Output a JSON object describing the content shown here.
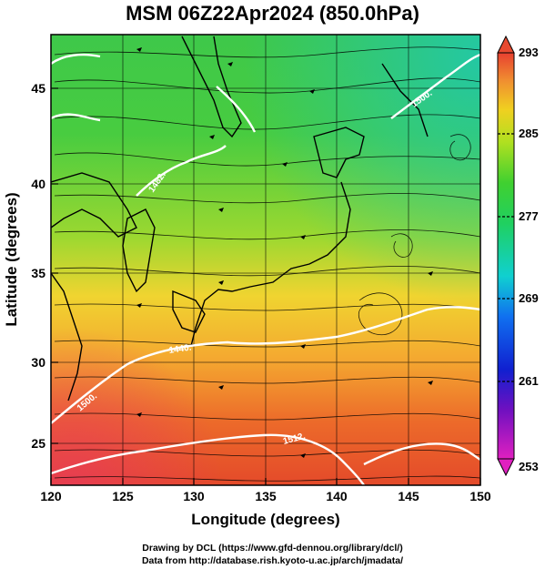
{
  "title": "MSM 06Z22Apr2024 (850.0hPa)",
  "xaxis": {
    "label": "Longitude (degrees)",
    "ticks": [
      "120",
      "125",
      "130",
      "135",
      "140",
      "145",
      "150"
    ],
    "range": [
      120,
      150
    ]
  },
  "yaxis": {
    "label": "Latitude  (degrees)",
    "ticks": [
      "25",
      "30",
      "35",
      "40",
      "45"
    ],
    "range": [
      22.4,
      47.6
    ]
  },
  "colorbar": {
    "ticks": [
      "293",
      "285",
      "277",
      "269",
      "261",
      "253"
    ],
    "range": [
      253,
      293
    ]
  },
  "contour_labels": [
    "1482.",
    "1440.",
    "1500.",
    "1512.",
    "1500."
  ],
  "credits": {
    "line1": "Drawing by DCL (https://www.gfd-dennou.org/library/dcl/)",
    "line2": "Data from http://database.rish.kyoto-u.ac.jp/arch/jmadata/"
  },
  "colors": {
    "warm": "#e8502a",
    "mid": "#f5c030",
    "cool": "#3cc850",
    "cold": "#22c8b0"
  }
}
